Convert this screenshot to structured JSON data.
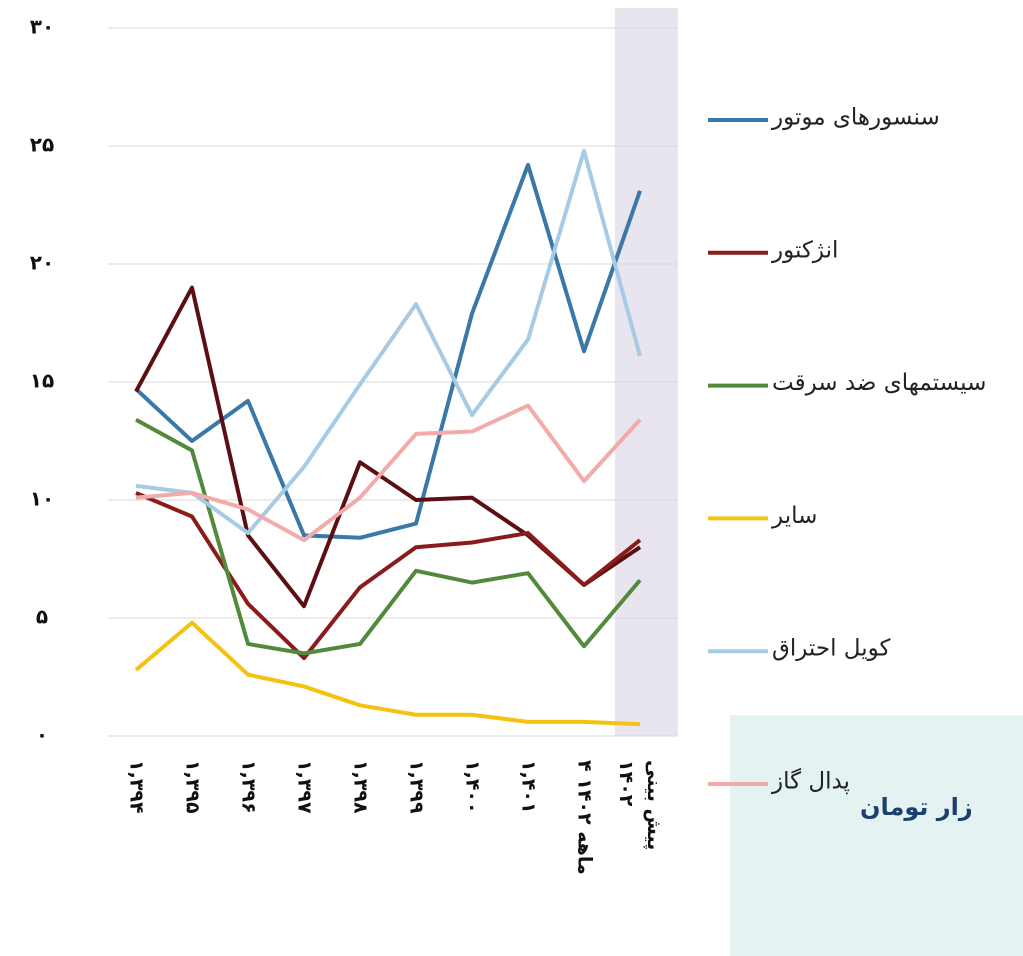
{
  "chart_data": {
    "type": "line",
    "categories": [
      "۱,۳۹۴",
      "۱,۳۹۵",
      "۱,۳۹۶",
      "۱,۳۹۷",
      "۱,۳۹۸",
      "۱,۳۹۹",
      "۱,۴۰۰",
      "۱,۴۰۱",
      "۴ ماهه ۱۴۰۲",
      "پیش بینی ۱۴۰۲"
    ],
    "ylim": [
      0,
      30
    ],
    "yticks": [
      {
        "value": 0,
        "label": "۰"
      },
      {
        "value": 5,
        "label": "۵"
      },
      {
        "value": 10,
        "label": "۱۰"
      },
      {
        "value": 15,
        "label": "۱۵"
      },
      {
        "value": 20,
        "label": "۲۰"
      },
      {
        "value": 25,
        "label": "۲۵"
      },
      {
        "value": 30,
        "label": "۳۰"
      }
    ],
    "grid": true,
    "legend_position": "right",
    "series": [
      {
        "name": "سنسورهای موتور",
        "color": "#3a78a8",
        "values": [
          14.7,
          12.5,
          14.2,
          8.5,
          8.4,
          9.0,
          17.9,
          24.2,
          16.3,
          23.1
        ]
      },
      {
        "color": "#5c0f12",
        "values": [
          14.6,
          19.0,
          8.5,
          5.5,
          11.6,
          10.0,
          10.1,
          8.5,
          6.4,
          8.0
        ]
      },
      {
        "name": "انژکتور",
        "color": "#8b1a1a",
        "values": [
          10.3,
          9.3,
          5.6,
          3.3,
          6.3,
          8.0,
          8.2,
          8.6,
          6.4,
          8.3
        ]
      },
      {
        "name": "سیستمهای ضد سرقت",
        "color": "#528a3c",
        "values": [
          13.4,
          12.1,
          3.9,
          3.5,
          3.9,
          7.0,
          6.5,
          6.9,
          3.8,
          6.6
        ]
      },
      {
        "name": "سایر",
        "color": "#f5c211",
        "values": [
          2.8,
          4.8,
          2.6,
          2.1,
          1.3,
          0.9,
          0.9,
          0.6,
          0.6,
          0.5
        ]
      },
      {
        "name": "کویل احتراق",
        "color": "#a7cbe4",
        "values": [
          10.6,
          10.3,
          8.6,
          11.4,
          14.9,
          18.3,
          13.6,
          16.8,
          24.8,
          16.1
        ]
      },
      {
        "name": "پدال گاز",
        "color": "#f2aaaa",
        "values": [
          10.1,
          10.3,
          9.6,
          8.3,
          10.1,
          12.8,
          12.9,
          14.0,
          10.8,
          13.4
        ]
      }
    ],
    "footer": "زار تومان"
  }
}
